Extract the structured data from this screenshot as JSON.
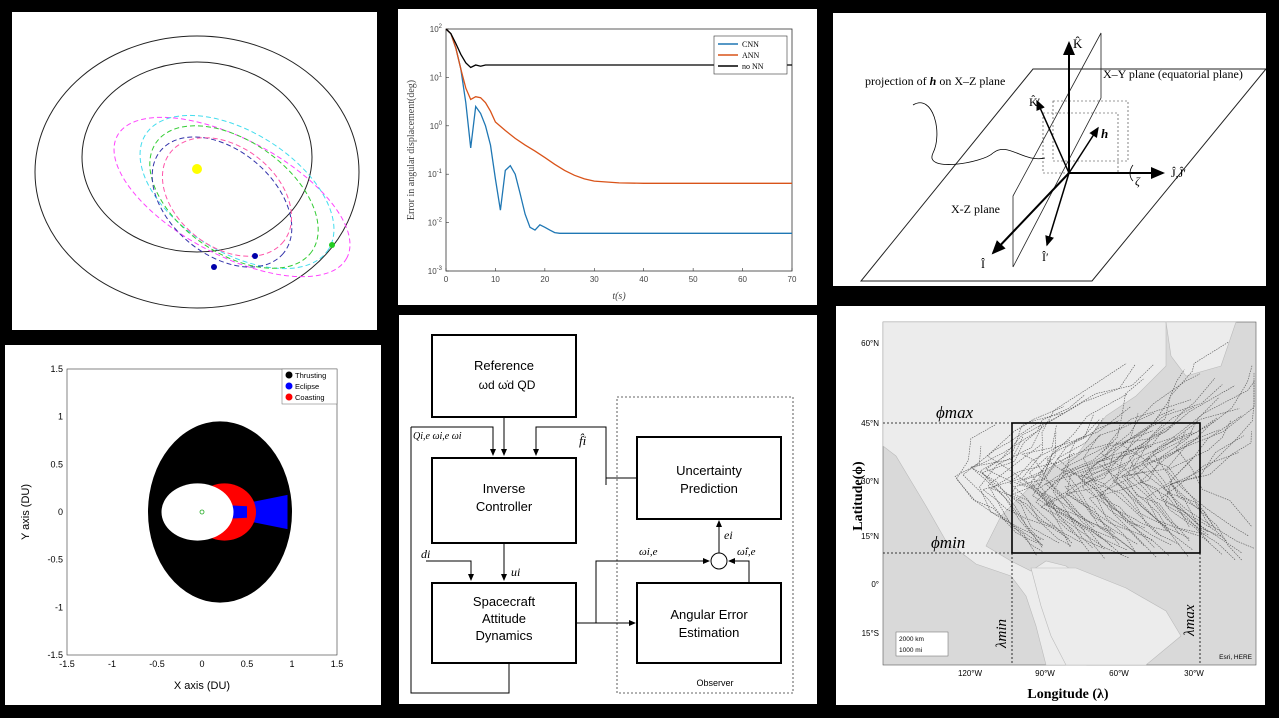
{
  "panels": {
    "orbit": {
      "colors": {
        "outer": "#222222",
        "inner": "#222222",
        "sun": "#ffff00",
        "traj": [
          "#ff44ff",
          "#44ddee",
          "#33cc33",
          "#3333aa",
          "#ff55aa"
        ]
      }
    },
    "error_plot": {
      "chart_data": {
        "type": "line",
        "ylabel": "Error in angular displacement(deg)",
        "xlabel": "t(s)",
        "xlim": [
          0,
          70
        ],
        "ylim_log10": [
          -3,
          2
        ],
        "xticks": [
          "0",
          "10",
          "20",
          "30",
          "40",
          "50",
          "60",
          "70"
        ],
        "yticks": [
          "10^-3",
          "10^-2",
          "10^-1",
          "10^0",
          "10^1",
          "10^2"
        ],
        "legend_position": "top-right",
        "series": [
          {
            "name": "CNN",
            "color": "#1f77b4",
            "points": [
              [
                0,
                100
              ],
              [
                1,
                80
              ],
              [
                2,
                40
              ],
              [
                3,
                15
              ],
              [
                4,
                3
              ],
              [
                5,
                0.35
              ],
              [
                6,
                2.5
              ],
              [
                7,
                1.8
              ],
              [
                8,
                1.0
              ],
              [
                9,
                0.4
              ],
              [
                10,
                0.08
              ],
              [
                11,
                0.018
              ],
              [
                12,
                0.12
              ],
              [
                13,
                0.15
              ],
              [
                14,
                0.1
              ],
              [
                15,
                0.04
              ],
              [
                16,
                0.015
              ],
              [
                17,
                0.008
              ],
              [
                18,
                0.007
              ],
              [
                19,
                0.009
              ],
              [
                20,
                0.008
              ],
              [
                21,
                0.007
              ],
              [
                22,
                0.0062
              ],
              [
                23,
                0.006
              ],
              [
                30,
                0.006
              ],
              [
                40,
                0.006
              ],
              [
                50,
                0.006
              ],
              [
                60,
                0.006
              ],
              [
                70,
                0.006
              ]
            ]
          },
          {
            "name": "ANN",
            "color": "#d95319",
            "points": [
              [
                0,
                100
              ],
              [
                1,
                80
              ],
              [
                2,
                40
              ],
              [
                3,
                15
              ],
              [
                4,
                6
              ],
              [
                5,
                3.5
              ],
              [
                6,
                4
              ],
              [
                7,
                3.8
              ],
              [
                8,
                3
              ],
              [
                9,
                2
              ],
              [
                10,
                1.2
              ],
              [
                12,
                0.8
              ],
              [
                14,
                0.55
              ],
              [
                16,
                0.4
              ],
              [
                18,
                0.3
              ],
              [
                20,
                0.22
              ],
              [
                22,
                0.16
              ],
              [
                24,
                0.12
              ],
              [
                26,
                0.095
              ],
              [
                28,
                0.08
              ],
              [
                30,
                0.072
              ],
              [
                35,
                0.066
              ],
              [
                40,
                0.065
              ],
              [
                50,
                0.065
              ],
              [
                60,
                0.065
              ],
              [
                70,
                0.065
              ]
            ]
          },
          {
            "name": "no NN",
            "color": "#000000",
            "points": [
              [
                0,
                100
              ],
              [
                1,
                80
              ],
              [
                2,
                50
              ],
              [
                3,
                30
              ],
              [
                4,
                20
              ],
              [
                5,
                16
              ],
              [
                6,
                18
              ],
              [
                7,
                17
              ],
              [
                8,
                18
              ],
              [
                10,
                18
              ],
              [
                20,
                18
              ],
              [
                30,
                18
              ],
              [
                40,
                18
              ],
              [
                50,
                18
              ],
              [
                60,
                18
              ],
              [
                70,
                18
              ]
            ]
          }
        ]
      }
    },
    "frame": {
      "labels": {
        "K": "K̂",
        "Kp": "K̂′",
        "J": "Ĵ,Ĵ′",
        "I": "Î",
        "Ip": "Î′",
        "h": "h",
        "zeta": "ζ",
        "projection": "projection of",
        "projection_h": "h",
        "projection_tail": "on X–Z plane",
        "xy_plane": "X–Y plane (equatorial plane)",
        "xz_plane": "X-Z plane"
      }
    },
    "scatter": {
      "chart_data": {
        "type": "scatter",
        "xlabel": "X axis (DU)",
        "ylabel": "Y axis (DU)",
        "xlim": [
          -1.5,
          1.5
        ],
        "ylim": [
          -1.5,
          1.5
        ],
        "xticks": [
          "-1.5",
          "-1",
          "-0.5",
          "0",
          "0.5",
          "1",
          "1.5"
        ],
        "yticks": [
          "-1.5",
          "-1",
          "-0.5",
          "0",
          "0.5",
          "1",
          "1.5"
        ],
        "legend_position": "top-right",
        "series": [
          {
            "name": "Thrusting",
            "color": "#000000"
          },
          {
            "name": "Eclipse",
            "color": "#0000ff"
          },
          {
            "name": "Coasting",
            "color": "#ff0000"
          }
        ]
      }
    },
    "block": {
      "reference_title": "Reference",
      "reference_vars": "ωd ω̇d QD",
      "inverse_l1": "Inverse",
      "inverse_l2": "Controller",
      "uncert_l1": "Uncertainty",
      "uncert_l2": "Prediction",
      "dyn_l1": "Spacecraft",
      "dyn_l2": "Attitude",
      "dyn_l3": "Dynamics",
      "est_l1": "Angular Error",
      "est_l2": "Estimation",
      "observer": "Observer",
      "sig_q": "Qi,e ωi,e ωi",
      "sig_f": "f̂i",
      "sig_d": "di",
      "sig_u": "ui",
      "sig_w": "ωi,e",
      "sig_what": "ω̂i,e",
      "sig_e": "ei"
    },
    "map": {
      "ylabel": "Latitude(ϕ)",
      "xlabel": "Longitude (λ)",
      "lat_ticks": [
        "60°N",
        "45°N",
        "30°N",
        "15°N",
        "0°",
        "15°S"
      ],
      "lon_ticks": [
        "120°W",
        "90°W",
        "60°W",
        "30°W"
      ],
      "phi_max": "ϕmax",
      "phi_min": "ϕmin",
      "lambda_min": "λmin",
      "lambda_max": "λmax",
      "scale_km": "2000 km",
      "scale_mi": "1000 mi",
      "attribution": "Esri, HERE"
    }
  }
}
